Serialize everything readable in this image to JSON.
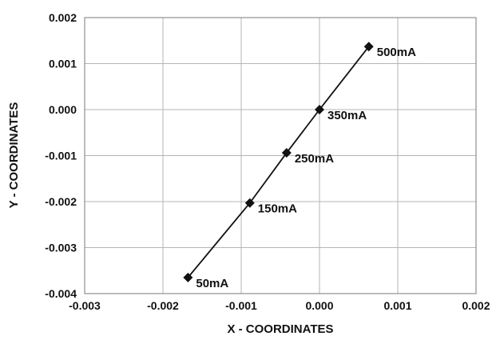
{
  "chart_data": {
    "type": "scatter",
    "title": "",
    "xlabel": "X - COORDINATES",
    "ylabel": "Y - COORDINATES",
    "xlim": [
      -0.003,
      0.002
    ],
    "ylim": [
      -0.004,
      0.002
    ],
    "x_ticks": [
      -0.003,
      -0.002,
      -0.001,
      0.0,
      0.001,
      0.002
    ],
    "x_tick_labels": [
      "-0.003",
      "-0.002",
      "-0.001",
      "0.000",
      "0.001",
      "0.002"
    ],
    "y_ticks": [
      0.002,
      0.001,
      0.0,
      -0.001,
      -0.002,
      -0.003,
      -0.004
    ],
    "y_tick_labels": [
      "0.002",
      "0.001",
      "0.000",
      "-0.001",
      "-0.002",
      "-0.003",
      "-0.004"
    ],
    "grid": true,
    "legend": "none",
    "series": [
      {
        "color": "#111111",
        "marker": "diamond",
        "points": [
          {
            "x": -0.00168,
            "y": -0.00365,
            "label": "50mA"
          },
          {
            "x": -0.00089,
            "y": -0.00203,
            "label": "150mA"
          },
          {
            "x": -0.00042,
            "y": -0.00094,
            "label": "250mA"
          },
          {
            "x": 0.0,
            "y": 0.0,
            "label": "350mA"
          },
          {
            "x": 0.00063,
            "y": 0.00137,
            "label": "500mA"
          }
        ]
      }
    ]
  }
}
